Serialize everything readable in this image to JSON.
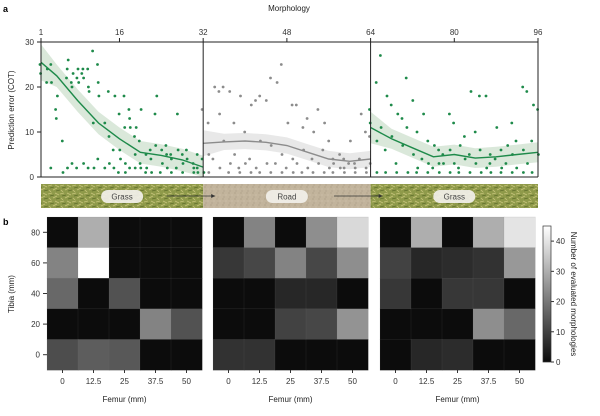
{
  "chart_data": [
    {
      "panel": "a",
      "type": "scatter",
      "xlabel": "Morphology",
      "ylabel": "Prediction error (COT)",
      "xlim": [
        1,
        96
      ],
      "ylim": [
        0,
        30
      ],
      "xticks": [
        1,
        16,
        32,
        48,
        64,
        80,
        96
      ],
      "yticks": [
        0,
        10,
        20,
        30
      ],
      "segments": [
        {
          "name": "Grass",
          "range": [
            1,
            32
          ],
          "color": "#1e8a4a",
          "trend": [
            [
              1,
              25.5
            ],
            [
              4,
              22.5
            ],
            [
              8,
              17
            ],
            [
              12,
              12
            ],
            [
              16,
              8.5
            ],
            [
              20,
              5.5
            ],
            [
              24,
              4.8
            ],
            [
              28,
              3.8
            ],
            [
              32,
              2.2
            ]
          ],
          "band": 2.5
        },
        {
          "name": "Road",
          "range": [
            32,
            64
          ],
          "color": "#8c8c8c",
          "trend": [
            [
              32,
              7.5
            ],
            [
              36,
              7.8
            ],
            [
              40,
              8
            ],
            [
              44,
              7.7
            ],
            [
              48,
              7
            ],
            [
              52,
              5.5
            ],
            [
              56,
              4
            ],
            [
              60,
              3.5
            ],
            [
              64,
              4
            ]
          ],
          "band": 1.8
        },
        {
          "name": "Grass",
          "range": [
            64,
            96
          ],
          "color": "#1e8a4a",
          "trend": [
            [
              64,
              11
            ],
            [
              68,
              8.5
            ],
            [
              72,
              6.5
            ],
            [
              76,
              4.5
            ],
            [
              80,
              5
            ],
            [
              84,
              4.2
            ],
            [
              88,
              4.5
            ],
            [
              92,
              5
            ],
            [
              96,
              5.5
            ]
          ],
          "band": 2.2
        }
      ],
      "terrain_labels": [
        "Grass",
        "Road",
        "Grass"
      ],
      "points_description": "~10 evaluations per morphology, scattered between 0 and 28 COT",
      "points": [
        [
          1,
          25
        ],
        [
          1,
          23
        ],
        [
          2,
          21
        ],
        [
          2,
          24
        ],
        [
          3,
          25
        ],
        [
          3,
          21
        ],
        [
          4,
          18
        ],
        [
          4,
          15
        ],
        [
          4,
          13
        ],
        [
          5,
          8
        ],
        [
          6,
          26
        ],
        [
          6,
          22
        ],
        [
          6,
          24
        ],
        [
          7,
          23
        ],
        [
          7,
          21
        ],
        [
          7,
          20
        ],
        [
          8,
          24
        ],
        [
          8,
          21
        ],
        [
          8,
          22
        ],
        [
          9,
          24
        ],
        [
          9,
          22
        ],
        [
          9,
          23
        ],
        [
          10,
          24
        ],
        [
          10,
          20
        ],
        [
          10,
          19
        ],
        [
          11,
          28
        ],
        [
          11,
          12
        ],
        [
          11,
          2
        ],
        [
          12,
          25
        ],
        [
          12,
          21
        ],
        [
          12,
          18
        ],
        [
          13,
          12
        ],
        [
          14,
          19
        ],
        [
          14,
          9
        ],
        [
          15,
          18
        ],
        [
          15,
          6
        ],
        [
          16,
          14
        ],
        [
          16,
          6
        ],
        [
          16,
          4
        ],
        [
          17,
          18
        ],
        [
          17,
          11
        ],
        [
          17,
          3
        ],
        [
          18,
          15
        ],
        [
          18,
          13
        ],
        [
          18,
          11
        ],
        [
          19,
          11
        ],
        [
          19,
          9
        ],
        [
          19,
          5
        ],
        [
          20,
          15
        ],
        [
          20,
          8
        ],
        [
          20,
          3
        ],
        [
          21,
          5
        ],
        [
          21,
          2
        ],
        [
          22,
          6
        ],
        [
          22,
          4
        ],
        [
          23,
          18
        ],
        [
          23,
          14
        ],
        [
          23,
          7
        ],
        [
          24,
          6
        ],
        [
          24,
          3
        ],
        [
          25,
          7
        ],
        [
          25,
          5
        ],
        [
          25,
          2
        ],
        [
          26,
          5
        ],
        [
          26,
          4
        ],
        [
          27,
          14
        ],
        [
          27,
          6
        ],
        [
          27,
          2
        ],
        [
          28,
          5
        ],
        [
          28,
          3
        ],
        [
          29,
          6
        ],
        [
          29,
          4
        ],
        [
          30,
          3
        ],
        [
          30,
          2
        ],
        [
          31,
          5
        ],
        [
          31,
          1
        ],
        [
          32,
          1
        ],
        [
          32,
          4
        ],
        [
          15,
          2
        ],
        [
          14,
          3
        ],
        [
          13,
          2
        ],
        [
          12,
          4
        ],
        [
          10,
          2
        ],
        [
          9,
          3
        ],
        [
          8,
          2
        ],
        [
          7,
          3
        ],
        [
          6,
          2
        ],
        [
          5,
          1
        ],
        [
          3,
          2
        ],
        [
          21,
          1
        ],
        [
          22,
          1
        ],
        [
          24,
          1
        ],
        [
          26,
          1
        ],
        [
          28,
          1
        ],
        [
          30,
          1
        ],
        [
          31,
          2
        ],
        [
          19,
          2
        ],
        [
          17,
          1
        ],
        [
          16,
          1
        ],
        [
          18,
          2
        ],
        [
          20,
          2
        ]
      ],
      "points_road": [
        [
          32,
          15
        ],
        [
          33,
          12
        ],
        [
          33,
          5
        ],
        [
          34,
          20
        ],
        [
          34,
          4
        ],
        [
          35,
          19
        ],
        [
          35,
          14
        ],
        [
          36,
          20
        ],
        [
          36,
          8
        ],
        [
          37,
          19
        ],
        [
          37,
          3
        ],
        [
          38,
          12
        ],
        [
          38,
          5
        ],
        [
          39,
          18
        ],
        [
          39,
          2
        ],
        [
          40,
          10
        ],
        [
          40,
          3
        ],
        [
          41,
          16
        ],
        [
          41,
          4
        ],
        [
          42,
          17
        ],
        [
          42,
          2
        ],
        [
          43,
          18
        ],
        [
          43,
          8
        ],
        [
          44,
          17
        ],
        [
          44,
          3
        ],
        [
          45,
          22
        ],
        [
          45,
          7
        ],
        [
          46,
          21
        ],
        [
          46,
          3
        ],
        [
          47,
          25
        ],
        [
          47,
          5
        ],
        [
          48,
          12
        ],
        [
          48,
          2
        ],
        [
          49,
          16
        ],
        [
          49,
          4
        ],
        [
          50,
          16
        ],
        [
          50,
          3
        ],
        [
          51,
          11
        ],
        [
          51,
          6
        ],
        [
          52,
          13
        ],
        [
          52,
          2
        ],
        [
          53,
          10
        ],
        [
          53,
          4
        ],
        [
          54,
          15
        ],
        [
          54,
          3
        ],
        [
          55,
          12
        ],
        [
          55,
          6
        ],
        [
          56,
          8
        ],
        [
          56,
          2
        ],
        [
          57,
          4
        ],
        [
          57,
          3
        ],
        [
          58,
          5
        ],
        [
          58,
          2
        ],
        [
          59,
          4
        ],
        [
          59,
          1
        ],
        [
          60,
          8
        ],
        [
          60,
          3
        ],
        [
          61,
          3
        ],
        [
          61,
          2
        ],
        [
          62,
          14
        ],
        [
          62,
          4
        ],
        [
          63,
          10
        ],
        [
          63,
          2
        ],
        [
          64,
          9
        ],
        [
          64,
          3
        ],
        [
          33,
          1
        ],
        [
          35,
          2
        ],
        [
          37,
          1
        ],
        [
          39,
          1
        ],
        [
          41,
          1
        ],
        [
          43,
          1
        ],
        [
          45,
          1
        ],
        [
          47,
          1
        ],
        [
          49,
          1
        ],
        [
          51,
          1
        ],
        [
          53,
          1
        ],
        [
          55,
          1
        ],
        [
          57,
          1
        ],
        [
          59,
          2
        ],
        [
          61,
          1
        ],
        [
          63,
          1
        ]
      ],
      "points_grass2": [
        [
          64,
          15
        ],
        [
          64,
          12
        ],
        [
          65,
          21
        ],
        [
          65,
          8
        ],
        [
          66,
          27
        ],
        [
          66,
          11
        ],
        [
          67,
          18
        ],
        [
          67,
          6
        ],
        [
          68,
          16
        ],
        [
          68,
          9
        ],
        [
          69,
          14
        ],
        [
          69,
          3
        ],
        [
          70,
          13
        ],
        [
          70,
          7
        ],
        [
          71,
          22
        ],
        [
          71,
          11
        ],
        [
          72,
          17
        ],
        [
          72,
          5
        ],
        [
          73,
          10
        ],
        [
          73,
          2
        ],
        [
          74,
          14
        ],
        [
          74,
          4
        ],
        [
          75,
          8
        ],
        [
          75,
          3
        ],
        [
          76,
          7
        ],
        [
          76,
          2
        ],
        [
          77,
          6
        ],
        [
          77,
          1
        ],
        [
          78,
          5
        ],
        [
          78,
          3
        ],
        [
          79,
          14
        ],
        [
          79,
          6
        ],
        [
          80,
          12
        ],
        [
          80,
          3
        ],
        [
          81,
          7
        ],
        [
          81,
          2
        ],
        [
          82,
          9
        ],
        [
          82,
          4
        ],
        [
          83,
          19
        ],
        [
          83,
          5
        ],
        [
          84,
          10
        ],
        [
          84,
          3
        ],
        [
          85,
          18
        ],
        [
          85,
          6
        ],
        [
          86,
          18
        ],
        [
          86,
          2
        ],
        [
          87,
          5
        ],
        [
          87,
          1
        ],
        [
          88,
          11
        ],
        [
          88,
          4
        ],
        [
          89,
          6
        ],
        [
          89,
          2
        ],
        [
          90,
          7
        ],
        [
          90,
          3
        ],
        [
          91,
          12
        ],
        [
          91,
          5
        ],
        [
          92,
          8
        ],
        [
          92,
          2
        ],
        [
          93,
          20
        ],
        [
          93,
          6
        ],
        [
          94,
          19
        ],
        [
          94,
          3
        ],
        [
          95,
          16
        ],
        [
          95,
          8
        ],
        [
          96,
          15
        ],
        [
          96,
          5
        ],
        [
          65,
          1
        ],
        [
          67,
          1
        ],
        [
          69,
          1
        ],
        [
          71,
          1
        ],
        [
          73,
          1
        ],
        [
          75,
          1
        ],
        [
          77,
          3
        ],
        [
          79,
          1
        ],
        [
          81,
          1
        ],
        [
          83,
          1
        ],
        [
          85,
          1
        ],
        [
          87,
          3
        ],
        [
          89,
          1
        ],
        [
          91,
          1
        ],
        [
          93,
          1
        ],
        [
          95,
          1
        ]
      ]
    },
    {
      "panel": "b",
      "type": "heatmap",
      "xlabel": "Femur (mm)",
      "ylabel": "Tibia (mm)",
      "xticks": [
        "0",
        "12.5",
        "25",
        "37.5",
        "50"
      ],
      "yticks": [
        "80",
        "60",
        "40",
        "20",
        "0"
      ],
      "colorbar": {
        "label": "Number of evaluated morphologies",
        "range": [
          0,
          45
        ],
        "ticks": [
          0,
          10,
          20,
          30,
          40
        ]
      },
      "matrices": [
        [
          [
            0,
            30,
            0,
            0,
            0
          ],
          [
            22,
            45,
            0,
            0,
            0
          ],
          [
            17,
            0,
            13,
            0,
            0
          ],
          [
            0,
            0,
            0,
            22,
            13
          ],
          [
            12,
            15,
            14,
            0,
            0
          ]
        ],
        [
          [
            0,
            22,
            0,
            24,
            38
          ],
          [
            8,
            11,
            22,
            11,
            24
          ],
          [
            0,
            0,
            5,
            5,
            0
          ],
          [
            0,
            0,
            10,
            11,
            25
          ],
          [
            7,
            7,
            0,
            0,
            0
          ]
        ],
        [
          [
            0,
            30,
            0,
            30,
            40
          ],
          [
            10,
            5,
            6,
            7,
            26
          ],
          [
            8,
            0,
            8,
            8,
            0
          ],
          [
            0,
            0,
            0,
            24,
            17
          ],
          [
            0,
            5,
            6,
            0,
            0
          ]
        ]
      ]
    }
  ],
  "labels": {
    "panel_a": "a",
    "panel_b": "b",
    "top_axis": "Morphology",
    "y_axis_a": "Prediction error (COT)",
    "x_axis_b": "Femur (mm)",
    "y_axis_b": "Tibia (mm)",
    "colorbar": "Number of evaluated morphologies"
  },
  "colors": {
    "grass": "#1e8a4a",
    "road": "#8c8c8c",
    "band": "#d6e6d6",
    "band_road": "#e6e6e6"
  }
}
